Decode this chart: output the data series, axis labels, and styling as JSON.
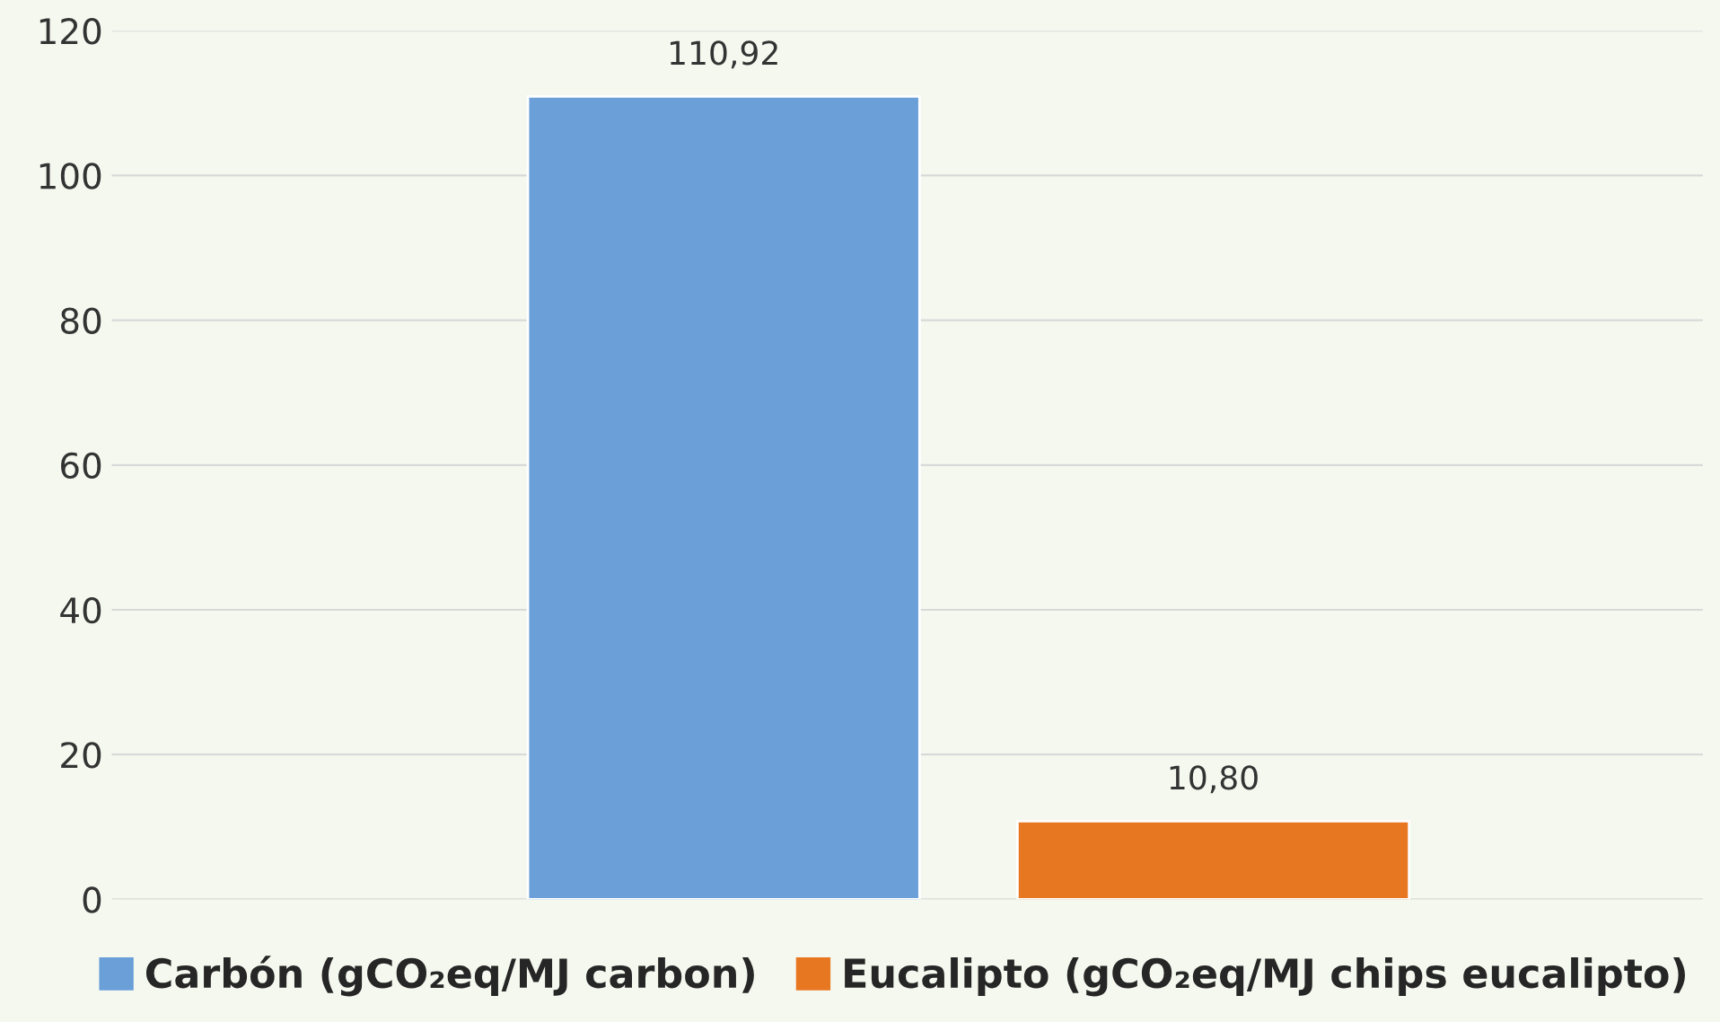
{
  "chart_data": {
    "type": "bar",
    "categories": [
      null
    ],
    "series": [
      {
        "name": "Carbón (gCO₂eq/MJ carbon)",
        "color": "#6a9fd8",
        "values": [
          110.92
        ],
        "value_labels": [
          "110,92"
        ]
      },
      {
        "name": "Eucalipto (gCO₂eq/MJ chips eucalipto)",
        "color": "#e87722",
        "values": [
          10.8
        ],
        "value_labels": [
          "10,80"
        ]
      }
    ],
    "ylim": [
      0,
      120
    ],
    "yticks": [
      0,
      20,
      40,
      60,
      80,
      100,
      120
    ],
    "grid": "y",
    "legend": "bottom"
  }
}
